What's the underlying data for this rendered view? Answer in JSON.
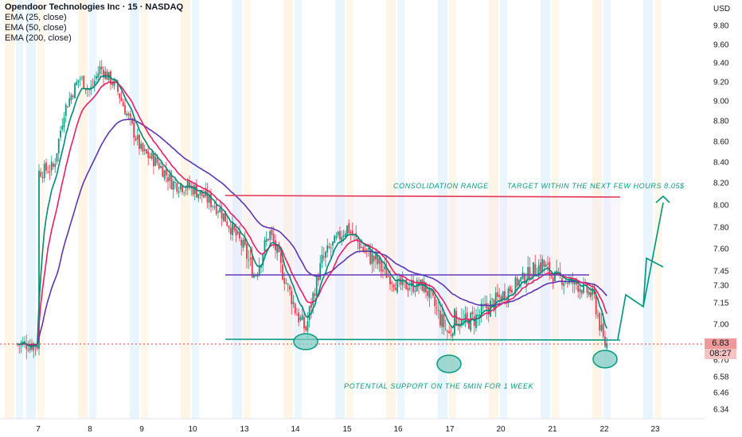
{
  "header": {
    "title": "Opendoor Technologies Inc · 15 · NASDAQ",
    "indicators": [
      "EMA (25, close)",
      "EMA (50, close)",
      "EMA (200, close)"
    ],
    "currency": "USD"
  },
  "price_label": {
    "price": "6.83",
    "countdown": "08:27"
  },
  "annotations": {
    "consolidation": "CONSOLIDATION RANGE",
    "target": "TARGET WITHIN THE NEXT FEW HOURS 8.05$",
    "support": "POTENTIAL SUPPORT ON THE 5MIN FOR 1 WEEK"
  },
  "colors": {
    "up": "#089981",
    "down": "#f23645",
    "ema25": "#00897b",
    "ema50": "#e91e63",
    "ema200": "#5e35b1",
    "resistance": "#e53955",
    "mid": "#673ab7",
    "support": "#089981"
  },
  "chart_data": {
    "type": "candlestick",
    "title": "Opendoor Technologies Inc · 15 · NASDAQ",
    "x_ticks": [
      "7",
      "8",
      "9",
      "10",
      "13",
      "14",
      "15",
      "16",
      "17",
      "20",
      "21",
      "22",
      "23"
    ],
    "y_ticks": [
      "9.80",
      "9.60",
      "9.40",
      "9.20",
      "9.00",
      "8.80",
      "8.60",
      "8.40",
      "8.20",
      "8.00",
      "7.80",
      "7.60",
      "7.45",
      "7.30",
      "7.15",
      "7.00",
      "6.83",
      "6.70",
      "6.58",
      "6.46",
      "6.34"
    ],
    "ylim": [
      6.28,
      9.95
    ],
    "close_path": [
      [
        "7",
        8.3
      ],
      [
        "7.3",
        8.35
      ],
      [
        "7.5",
        8.9
      ],
      [
        "7.8",
        9.25
      ],
      [
        "8",
        9.1
      ],
      [
        "8.2",
        9.35
      ],
      [
        "8.5",
        9.15
      ],
      [
        "8.8",
        8.75
      ],
      [
        "9",
        8.5
      ],
      [
        "9.3",
        8.4
      ],
      [
        "9.6",
        8.2
      ],
      [
        "10",
        8.15
      ],
      [
        "10.3",
        8.1
      ],
      [
        "13",
        7.6
      ],
      [
        "13.2",
        7.4
      ],
      [
        "13.5",
        7.75
      ],
      [
        "13.8",
        7.35
      ],
      [
        "14",
        7.1
      ],
      [
        "14.2",
        6.95
      ],
      [
        "14.5",
        7.5
      ],
      [
        "15",
        7.8
      ],
      [
        "15.3",
        7.6
      ],
      [
        "15.6",
        7.5
      ],
      [
        "16",
        7.3
      ],
      [
        "16.5",
        7.3
      ],
      [
        "16.8",
        7.05
      ],
      [
        "17",
        6.9
      ],
      [
        "17.2",
        7.05
      ],
      [
        "17.5",
        7.0
      ],
      [
        "20",
        7.2
      ],
      [
        "20.5",
        7.4
      ],
      [
        "20.8",
        7.5
      ],
      [
        "21",
        7.4
      ],
      [
        "21.5",
        7.3
      ],
      [
        "21.8",
        7.2
      ],
      [
        "22",
        6.83
      ]
    ],
    "ema_labels": [
      "EMA (25, close)",
      "EMA (50, close)",
      "EMA (200, close)"
    ],
    "consolidation_range": {
      "top": 8.05,
      "middle": 7.4,
      "bottom": 6.85
    },
    "target": 8.05,
    "last_price": 6.83,
    "grid": false
  }
}
